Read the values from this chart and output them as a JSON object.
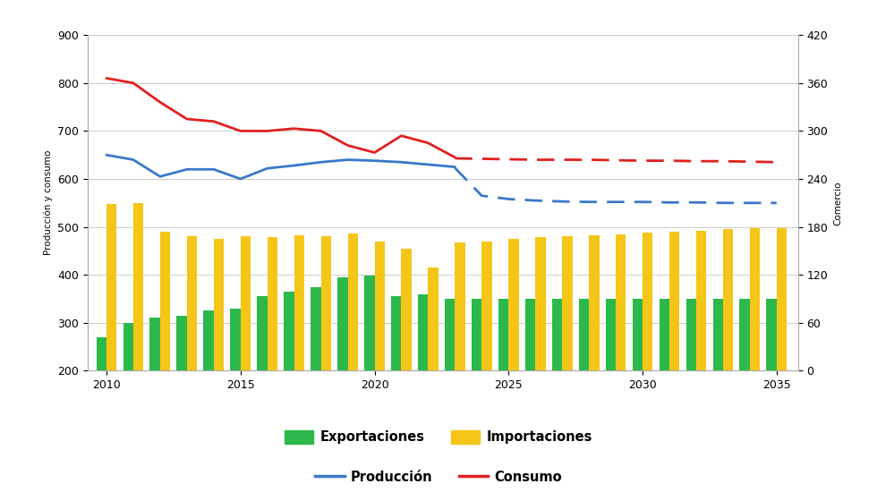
{
  "ylabel_left": "Producción y consumo",
  "ylabel_right": "Comercio",
  "ylim_left": [
    200,
    900
  ],
  "yticks_left": [
    200,
    300,
    400,
    500,
    600,
    700,
    800,
    900
  ],
  "yticks_right": [
    0,
    60,
    120,
    180,
    240,
    300,
    360,
    420
  ],
  "xticks": [
    2010,
    2015,
    2020,
    2025,
    2030,
    2035
  ],
  "all_years": [
    2010,
    2011,
    2012,
    2013,
    2014,
    2015,
    2016,
    2017,
    2018,
    2019,
    2020,
    2021,
    2022,
    2023,
    2024,
    2025,
    2026,
    2027,
    2028,
    2029,
    2030,
    2031,
    2032,
    2033,
    2034,
    2035
  ],
  "years_hist": [
    2010,
    2011,
    2012,
    2013,
    2014,
    2015,
    2016,
    2017,
    2018,
    2019,
    2020,
    2021,
    2022,
    2023
  ],
  "years_proj": [
    2023,
    2024,
    2025,
    2026,
    2027,
    2028,
    2029,
    2030,
    2031,
    2032,
    2033,
    2034,
    2035
  ],
  "exportaciones": [
    270,
    300,
    310,
    315,
    325,
    330,
    355,
    365,
    375,
    395,
    398,
    355,
    360,
    350,
    350,
    350,
    350,
    350,
    350,
    350,
    350,
    350,
    350,
    350,
    350,
    350
  ],
  "importaciones": [
    548,
    550,
    490,
    480,
    475,
    480,
    478,
    482,
    480,
    487,
    470,
    455,
    415,
    468,
    470,
    475,
    478,
    480,
    482,
    485,
    488,
    490,
    492,
    495,
    497,
    498
  ],
  "produccion_hist": [
    650,
    640,
    605,
    620,
    620,
    600,
    622,
    628,
    635,
    640,
    638,
    635,
    630,
    625
  ],
  "produccion_proj": [
    623,
    565,
    558,
    555,
    553,
    552,
    552,
    552,
    551,
    551,
    550,
    550,
    550
  ],
  "consumo_hist": [
    810,
    800,
    760,
    725,
    720,
    700,
    700,
    705,
    700,
    670,
    655,
    690,
    675,
    645
  ],
  "consumo_proj": [
    643,
    642,
    641,
    640,
    640,
    640,
    639,
    638,
    638,
    637,
    637,
    636,
    635
  ],
  "bar_width": 0.38,
  "color_exportaciones": "#2db84b",
  "color_importaciones": "#f5c518",
  "color_produccion": "#3a78c9",
  "color_consumo": "#e02020",
  "background_color": "#ffffff",
  "grid_color": "#cccccc"
}
